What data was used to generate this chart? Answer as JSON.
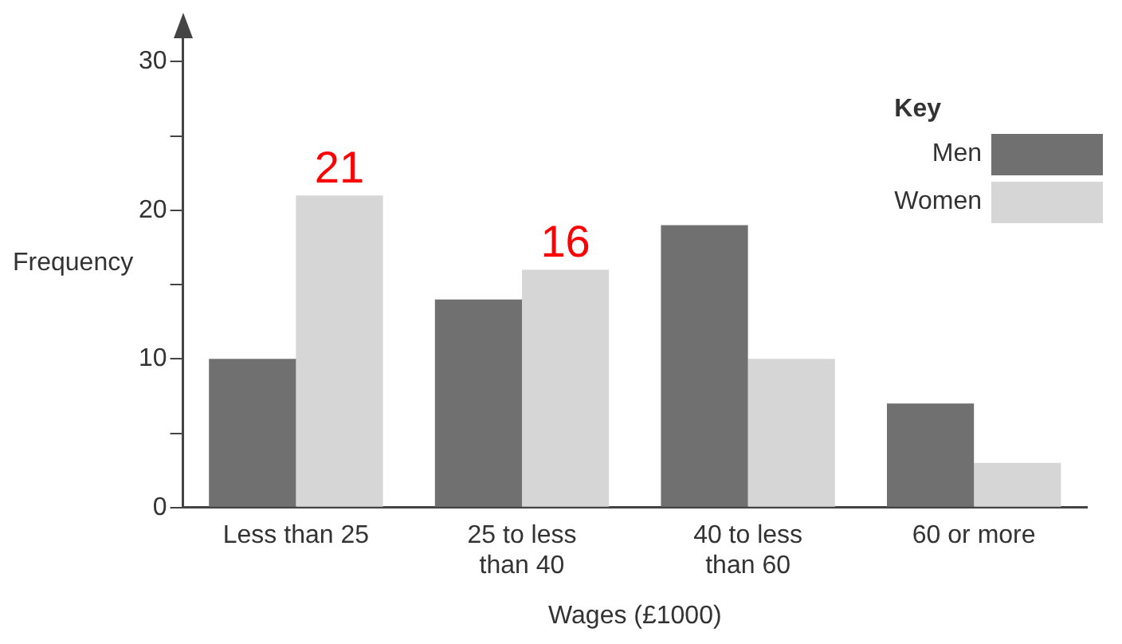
{
  "chart_data": {
    "type": "bar",
    "xlabel": "Wages (£1000)",
    "ylabel": "Frequency",
    "legend_title": "Key",
    "legend": "top right",
    "grid": false,
    "categories": [
      "Less than 25",
      "25 to less than 40",
      "40 to less than 60",
      "60 or more"
    ],
    "series": [
      {
        "name": "Men",
        "color": "#707070",
        "values": [
          10,
          14,
          19,
          7
        ]
      },
      {
        "name": "Women",
        "color": "#d6d6d6",
        "values": [
          21,
          16,
          10,
          3
        ],
        "value_labels": [
          "21",
          "16",
          null,
          null
        ]
      }
    ],
    "ylim": [
      0,
      32
    ],
    "yticks": [
      0,
      {
        "value": 5,
        "label": null
      },
      10,
      {
        "value": 15,
        "label": null
      },
      20,
      {
        "value": 25,
        "label": null
      },
      30
    ]
  }
}
